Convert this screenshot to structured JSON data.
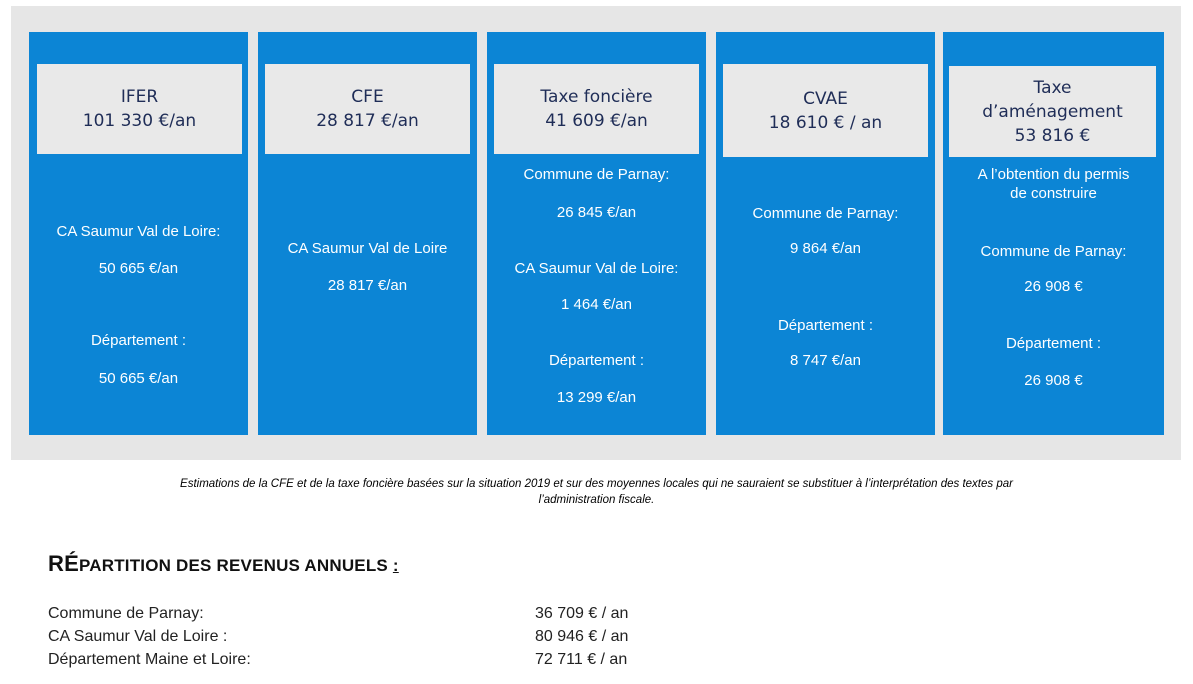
{
  "taxes": [
    {
      "title_lines": [
        "IFER",
        "101 330 €/an"
      ],
      "details": [
        "CA Saumur Val de Loire:",
        "50 665 €/an",
        "Département :",
        "50 665 €/an"
      ]
    },
    {
      "title_lines": [
        "CFE",
        "28 817 €/an"
      ],
      "details": [
        "CA Saumur Val de Loire",
        "28 817 €/an"
      ]
    },
    {
      "title_lines": [
        "Taxe foncière",
        "41 609 €/an"
      ],
      "details": [
        "Commune de Parnay:",
        "26 845 €/an",
        "CA Saumur Val de Loire:",
        "1 464 €/an",
        "Département :",
        "13 299 €/an"
      ]
    },
    {
      "title_lines": [
        "CVAE",
        "18 610 € / an"
      ],
      "details": [
        "Commune de Parnay:",
        "9 864 €/an",
        "Département :",
        "8 747 €/an"
      ]
    },
    {
      "title_lines": [
        "Taxe",
        "d’aménagement",
        "53 816 €"
      ],
      "details": [
        "A l’obtention du permis",
        "de construire",
        "Commune de Parnay:",
        "26 908 €",
        "Département :",
        "26 908 €"
      ]
    }
  ],
  "footnote": {
    "line1": "Estimations de la CFE et de la taxe foncière basées sur la situation 2019 et sur des moyennes locales qui ne sauraient se substituer à l’interprétation des textes par",
    "line2": "l’administration fiscale."
  },
  "section": {
    "title_big": "RÉ",
    "title_rest": "PARTITION DES REVENUS ANNUELS ",
    "title_colon": ":"
  },
  "revenues": [
    {
      "label": "Commune de Parnay:",
      "value": "36 709 € / an"
    },
    {
      "label": "CA Saumur Val de Loire :",
      "value": "80 946 € / an"
    },
    {
      "label": "Département Maine et Loire:",
      "value": "72 711 € / an"
    }
  ]
}
